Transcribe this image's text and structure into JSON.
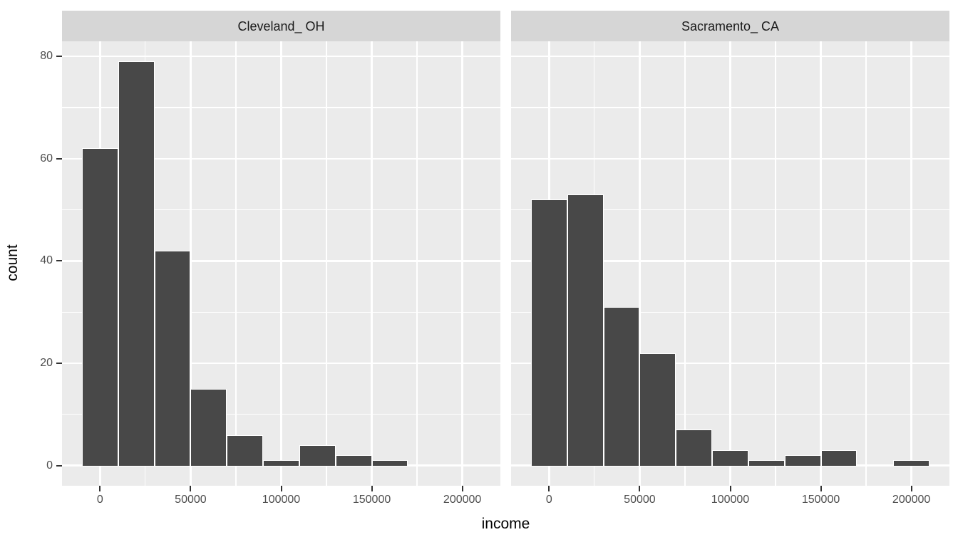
{
  "chart_data": {
    "type": "bar",
    "subtype": "faceted_histogram",
    "xlabel": "income",
    "ylabel": "count",
    "bin_width": 20000,
    "bin_start": -10000,
    "xlim": [
      -21000,
      221000
    ],
    "ylim": [
      -3.95,
      82.95
    ],
    "x_tick_values": [
      0,
      50000,
      100000,
      150000,
      200000
    ],
    "x_tick_labels": [
      "0",
      "50000",
      "100000",
      "150000",
      "200000"
    ],
    "x_minor_ticks": [
      25000,
      75000,
      125000,
      175000
    ],
    "y_tick_values": [
      0,
      20,
      40,
      60,
      80
    ],
    "y_tick_labels": [
      "0",
      "20",
      "40",
      "60",
      "80"
    ],
    "y_minor_ticks": [
      10,
      30,
      50,
      70
    ],
    "grid": true,
    "legend": false,
    "facets": [
      {
        "label": "Cleveland_ OH",
        "bin_centers": [
          0,
          20000,
          40000,
          60000,
          80000,
          100000,
          120000,
          140000,
          160000
        ],
        "counts": [
          62,
          79,
          42,
          15,
          6,
          1,
          4,
          2,
          1
        ]
      },
      {
        "label": "Sacramento_ CA",
        "bin_centers": [
          0,
          20000,
          40000,
          60000,
          80000,
          100000,
          120000,
          140000,
          160000,
          180000,
          200000
        ],
        "counts": [
          52,
          53,
          31,
          22,
          7,
          3,
          1,
          2,
          3,
          0,
          1
        ]
      }
    ]
  },
  "style": {
    "figure_bg": "#ffffff",
    "panel_bg": "#ebebeb",
    "strip_bg": "#d6d6d6",
    "strip_text_color": "#1a1a1a",
    "bar_fill": "#484848",
    "bar_border": "#ffffff",
    "grid_color": "#ffffff",
    "tick_mark_color": "#333333",
    "tick_label_color": "#4d4d4d",
    "axis_title_color": "#000000"
  }
}
